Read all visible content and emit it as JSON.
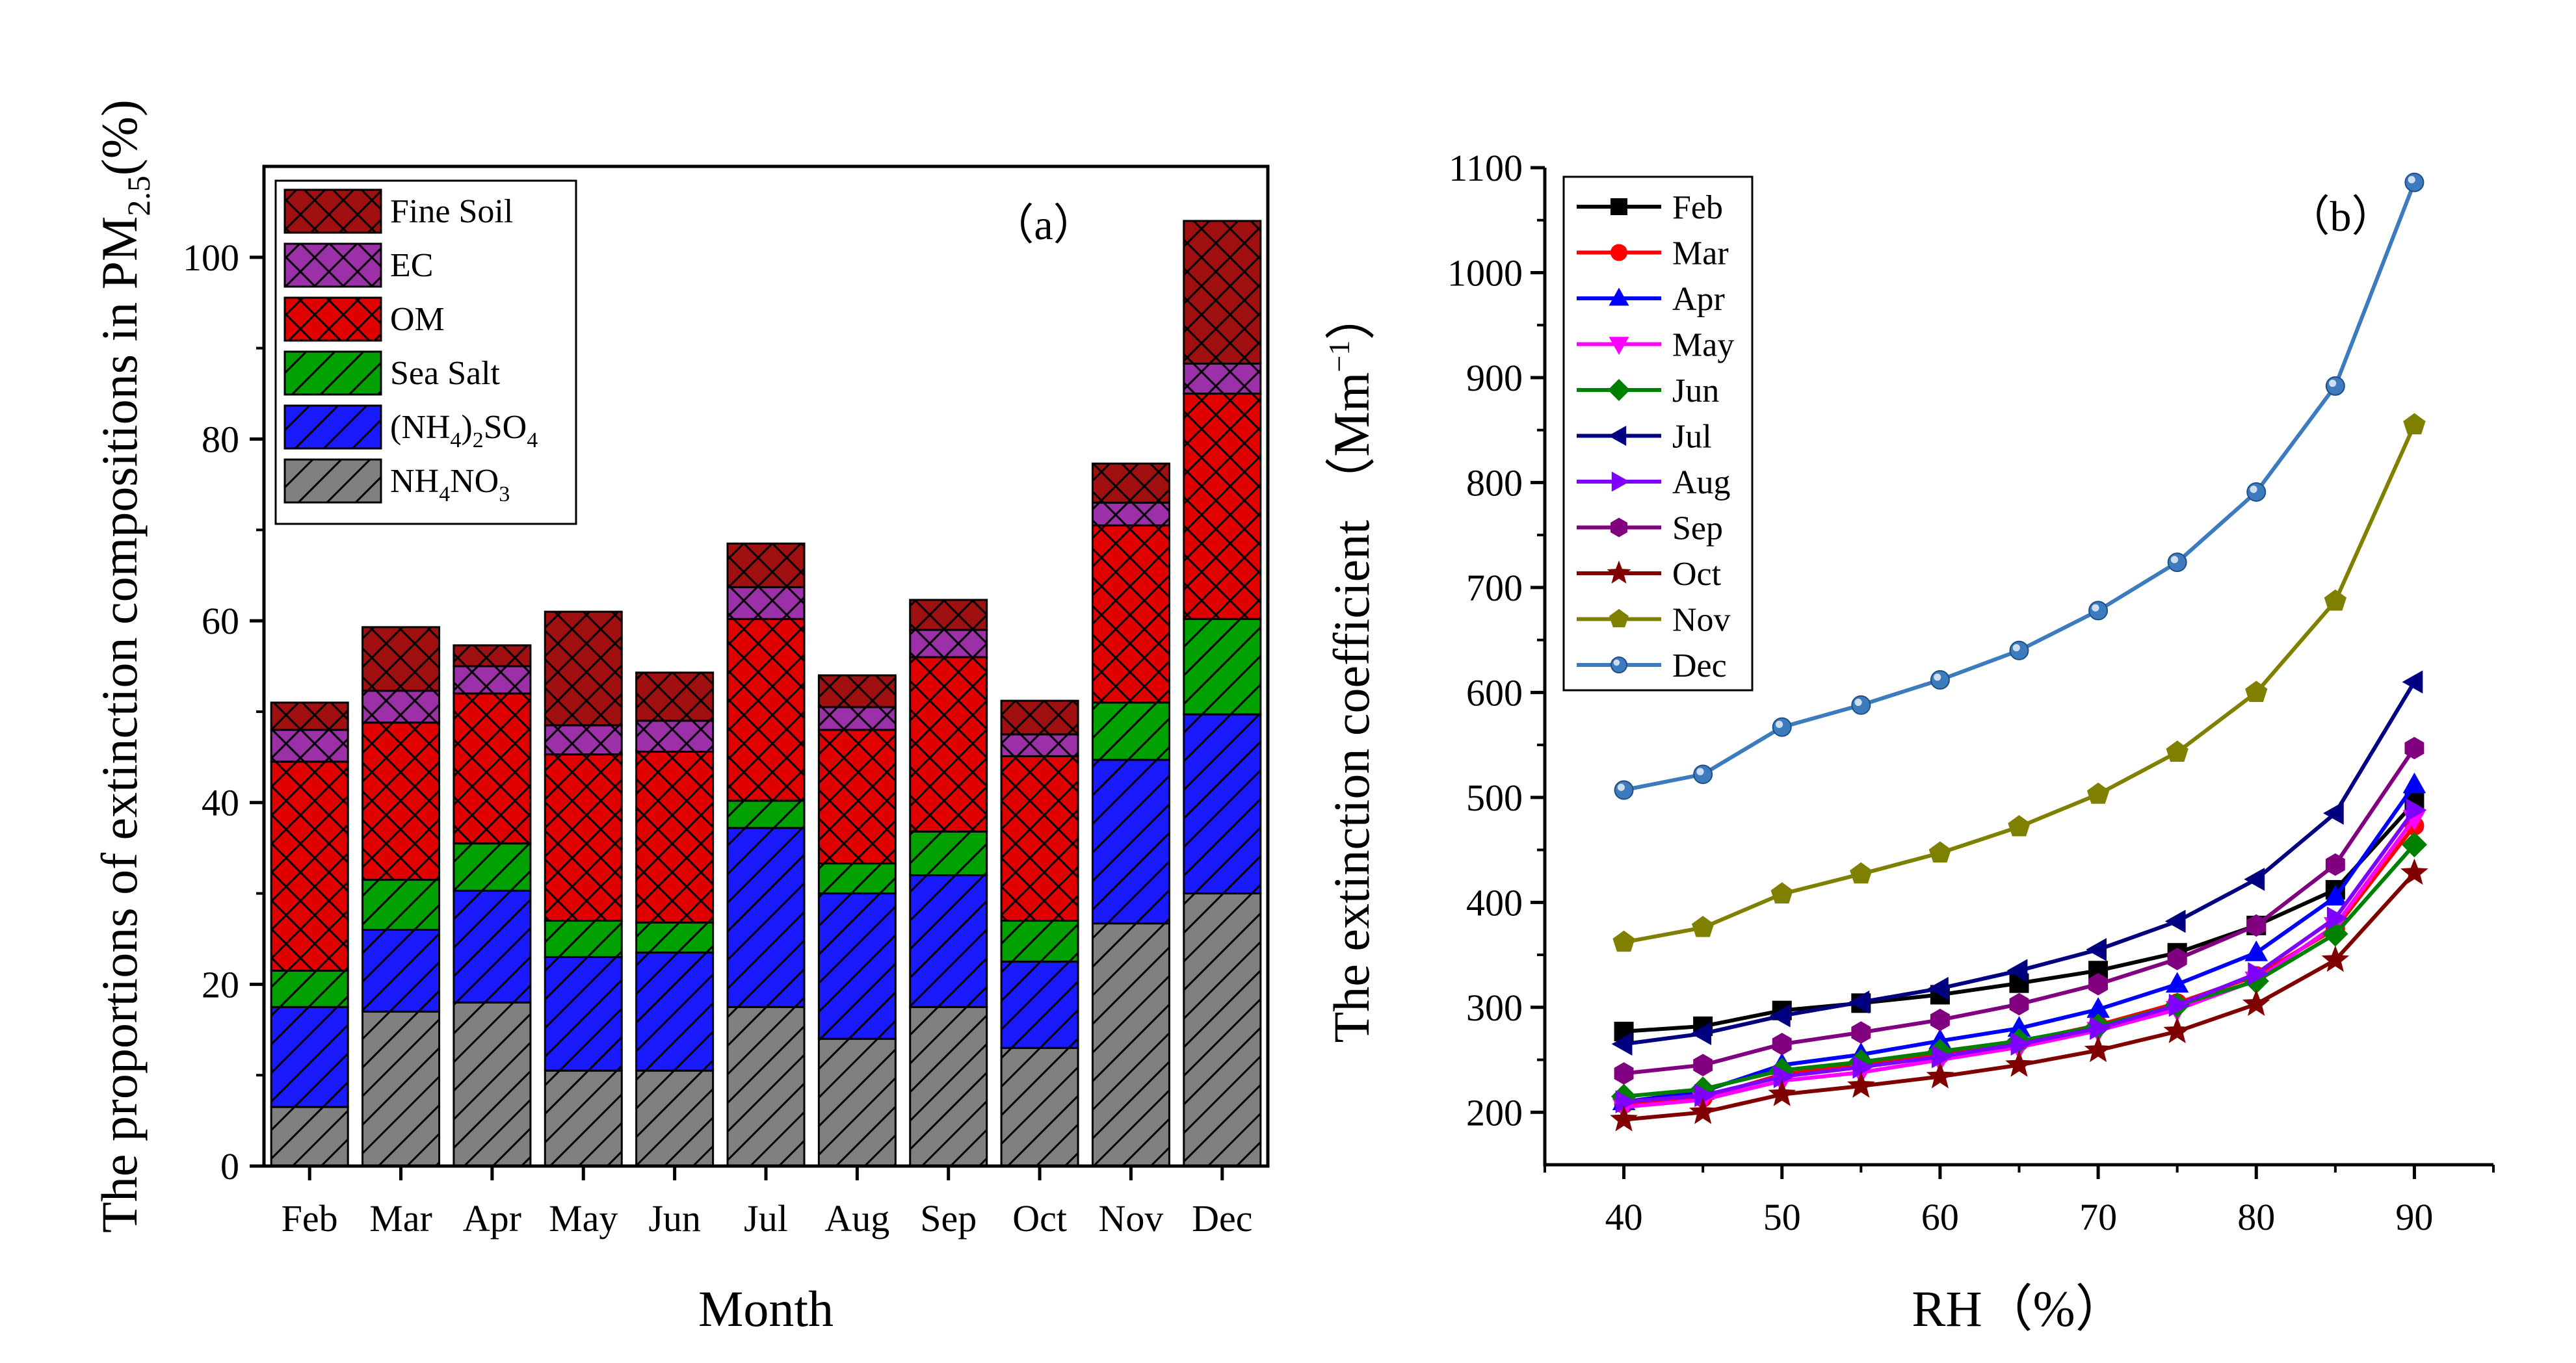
{
  "chart_data": [
    {
      "type": "bar",
      "stacked": true,
      "panel_label": "（a）",
      "title": "",
      "xlabel": "Month",
      "ylabel_main": "The proportions of extinction compositions in PM",
      "ylabel_sub": "2.5",
      "ylabel_end": "(%)",
      "ylim": [
        0,
        110
      ],
      "yticks": [
        0,
        20,
        40,
        60,
        80,
        100
      ],
      "categories": [
        "Feb",
        "Mar",
        "Apr",
        "May",
        "Jun",
        "Jul",
        "Aug",
        "Sep",
        "Oct",
        "Nov",
        "Dec"
      ],
      "series": [
        {
          "name": "NH4NO3",
          "label_parts": [
            "NH",
            "4",
            "NO",
            "3"
          ],
          "color": "#808080",
          "values": [
            6.5,
            17,
            18,
            10.5,
            10.5,
            17.5,
            14,
            17.5,
            13,
            26.7,
            30
          ]
        },
        {
          "name": "(NH4)2SO4",
          "label_parts": [
            "(NH",
            "4",
            ")",
            "2",
            "SO",
            "4"
          ],
          "color": "#1a1aff",
          "values": [
            11,
            9,
            12.3,
            12.5,
            13,
            19.7,
            16,
            14.5,
            9.5,
            18,
            19.7
          ]
        },
        {
          "name": "Sea Salt",
          "label_parts": [
            "Sea Salt"
          ],
          "color": "#00a000",
          "values": [
            4,
            5.5,
            5.2,
            4,
            3.3,
            3,
            3.3,
            4.8,
            4.5,
            6.3,
            10.5
          ]
        },
        {
          "name": "OM",
          "label_parts": [
            "OM"
          ],
          "color": "#e00000",
          "values": [
            23,
            17.3,
            16.5,
            18.3,
            18.8,
            20,
            14.7,
            19.2,
            18.1,
            19.5,
            24.8
          ]
        },
        {
          "name": "EC",
          "label_parts": [
            "EC"
          ],
          "color": "#9b30a8",
          "values": [
            3.5,
            3.5,
            3,
            3.2,
            3.4,
            3.5,
            2.5,
            3,
            2.4,
            2.5,
            3.3
          ]
        },
        {
          "name": "Fine Soil",
          "label_parts": [
            "Fine Soil"
          ],
          "color": "#a01010",
          "values": [
            3,
            7,
            2.3,
            12.5,
            5.3,
            4.8,
            3.5,
            3.3,
            3.7,
            4.3,
            15.7
          ]
        }
      ],
      "legend_position": "top-left"
    },
    {
      "type": "line",
      "panel_label": "（b）",
      "title": "",
      "xlabel": "RH（%）",
      "ylabel_main": "The extinction coefficient  （Mm",
      "ylabel_sup": "−1",
      "ylabel_end": "）",
      "xlim": [
        35,
        95
      ],
      "ylim": [
        150,
        1100
      ],
      "xticks": [
        40,
        50,
        60,
        70,
        80,
        90
      ],
      "yticks": [
        200,
        300,
        400,
        500,
        600,
        700,
        800,
        900,
        1000,
        1100
      ],
      "x": [
        40,
        45,
        50,
        55,
        60,
        65,
        70,
        75,
        80,
        85,
        90
      ],
      "series": [
        {
          "name": "Feb",
          "color": "#000000",
          "marker": "square",
          "values": [
            277,
            282,
            297,
            304,
            312,
            323,
            335,
            352,
            378,
            412,
            495
          ]
        },
        {
          "name": "Mar",
          "color": "#ff0000",
          "marker": "circle",
          "values": [
            208,
            214,
            236,
            245,
            255,
            267,
            283,
            304,
            330,
            375,
            473
          ]
        },
        {
          "name": "Apr",
          "color": "#0000ff",
          "marker": "triangle-up",
          "values": [
            210,
            220,
            245,
            255,
            268,
            280,
            298,
            322,
            352,
            405,
            512
          ]
        },
        {
          "name": "May",
          "color": "#ff00ff",
          "marker": "triangle-down",
          "values": [
            205,
            212,
            230,
            238,
            250,
            262,
            278,
            298,
            326,
            378,
            480
          ]
        },
        {
          "name": "Jun",
          "color": "#008000",
          "marker": "diamond",
          "values": [
            215,
            222,
            240,
            248,
            258,
            268,
            282,
            302,
            325,
            370,
            455
          ]
        },
        {
          "name": "Jul",
          "color": "#000080",
          "marker": "triangle-left",
          "values": [
            265,
            275,
            292,
            305,
            318,
            335,
            355,
            382,
            422,
            485,
            610
          ]
        },
        {
          "name": "Aug",
          "color": "#8000ff",
          "marker": "triangle-right",
          "values": [
            210,
            216,
            234,
            243,
            253,
            265,
            280,
            302,
            332,
            385,
            488
          ]
        },
        {
          "name": "Sep",
          "color": "#800080",
          "marker": "hexagon",
          "values": [
            237,
            245,
            265,
            276,
            288,
            303,
            322,
            346,
            378,
            436,
            547
          ]
        },
        {
          "name": "Oct",
          "color": "#800000",
          "marker": "star",
          "values": [
            193,
            200,
            217,
            225,
            234,
            245,
            259,
            277,
            303,
            345,
            428
          ]
        },
        {
          "name": "Nov",
          "color": "#808000",
          "marker": "pentagon",
          "values": [
            362,
            376,
            408,
            427,
            447,
            472,
            503,
            543,
            600,
            687,
            855
          ]
        },
        {
          "name": "Dec",
          "color": "#3d7bbf",
          "marker": "sphere",
          "values": [
            507,
            522,
            567,
            588,
            612,
            640,
            678,
            724,
            791,
            892,
            1086
          ]
        }
      ],
      "legend_position": "top-left"
    }
  ]
}
